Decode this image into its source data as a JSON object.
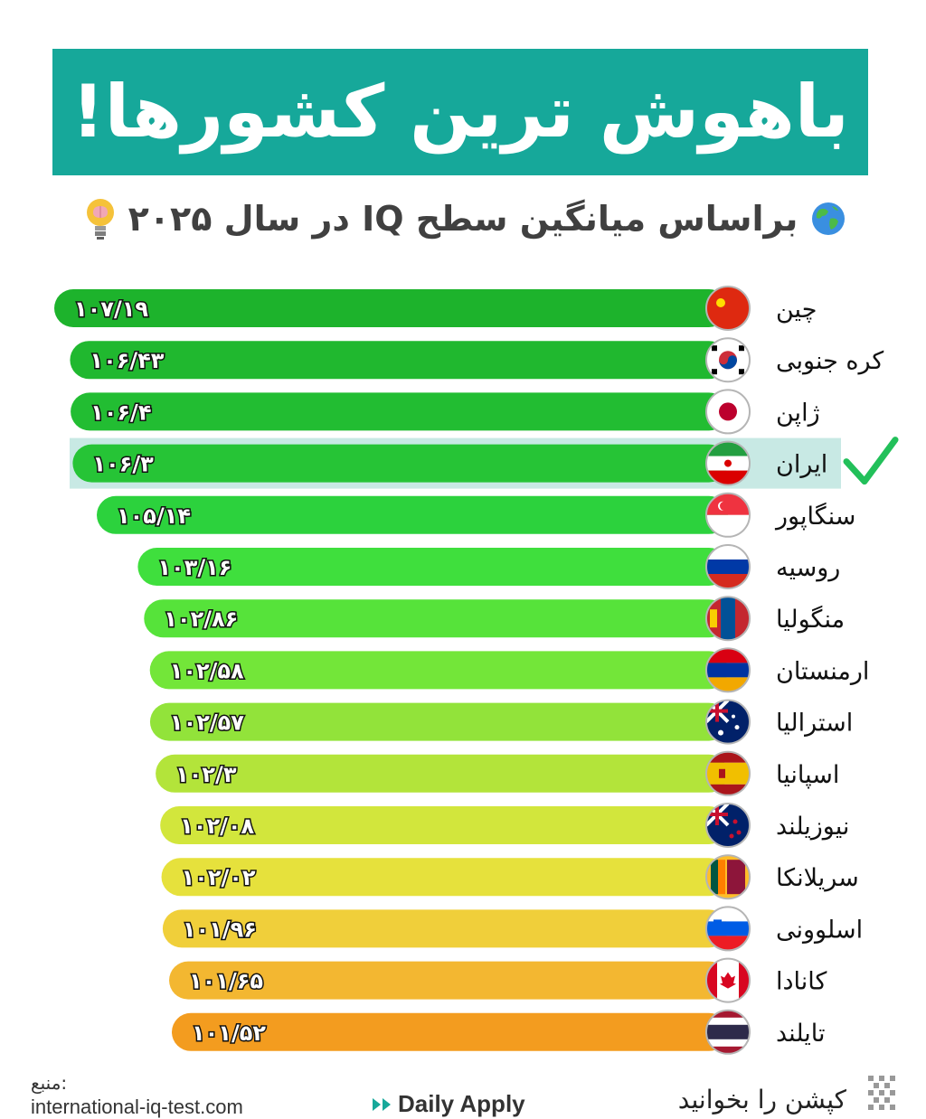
{
  "title": "باهوش ترین کشورها!",
  "subtitle": "براساس میانگین سطح  IQ در سال ۲۰۲۵",
  "icons": {
    "subtitle_left": "globe-icon",
    "subtitle_right": "lightbulb-brain-icon",
    "highlight": "checkmark-icon",
    "footer_caption": "qr-code-icon",
    "brand": "double-chevron-icon"
  },
  "colors": {
    "title_bg": "#16a89a",
    "highlight_row": "#c8e9e4",
    "check": "#22c05a"
  },
  "chart_data": {
    "type": "bar",
    "orientation": "horizontal",
    "categories": [
      "چین",
      "کره جنوبی",
      "ژاپن",
      "ایران",
      "سنگاپور",
      "روسیه",
      "منگولیا",
      "ارمنستان",
      "استرالیا",
      "اسپانیا",
      "نیوزیلند",
      "سریلانکا",
      "اسلوونی",
      "کانادا",
      "تایلند"
    ],
    "values": [
      107.19,
      106.43,
      106.4,
      106.3,
      105.14,
      103.16,
      102.86,
      102.58,
      102.57,
      102.3,
      102.08,
      102.02,
      101.96,
      101.65,
      101.52
    ],
    "value_labels": [
      "۱۰۷/۱۹",
      "۱۰۶/۴۳",
      "۱۰۶/۴",
      "۱۰۶/۳",
      "۱۰۵/۱۴",
      "۱۰۳/۱۶",
      "۱۰۲/۸۶",
      "۱۰۲/۵۸",
      "۱۰۲/۵۷",
      "۱۰۲/۳",
      "۱۰۲/۰۸",
      "۱۰۲/۰۲",
      "۱۰۱/۹۶",
      "۱۰۱/۶۵",
      "۱۰۱/۵۲"
    ],
    "bar_colors": [
      "#1db32c",
      "#20b82f",
      "#22bd32",
      "#26c436",
      "#2cd23d",
      "#3fdf3d",
      "#56e33a",
      "#73e639",
      "#92e33a",
      "#b3e43a",
      "#d2e63c",
      "#e6e13c",
      "#f0cf3a",
      "#f3b731",
      "#f39c1f"
    ],
    "highlight": "ایران"
  },
  "footer": {
    "source_label": ":منبع",
    "source_url": "international-iq-test.com",
    "brand": "Daily Apply",
    "caption": "کپشن را بخوانید"
  }
}
